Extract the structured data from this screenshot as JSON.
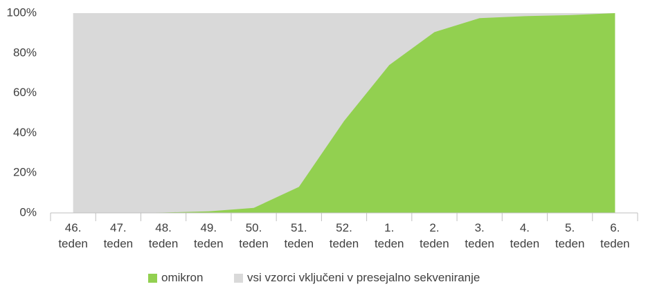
{
  "chart_data": {
    "type": "area",
    "categories": [
      "46. teden",
      "47. teden",
      "48. teden",
      "49. teden",
      "50. teden",
      "51. teden",
      "52. teden",
      "1. teden",
      "2. teden",
      "3. teden",
      "4. teden",
      "5. teden",
      "6. teden"
    ],
    "series": [
      {
        "name": "omikron",
        "color": "#92d050",
        "values": [
          0,
          0,
          0.2,
          0.8,
          2.5,
          13,
          46,
          74,
          90.5,
          97.5,
          98.5,
          99,
          100
        ]
      },
      {
        "name": "vsi vzorci vključeni v presejalno sekveniranje",
        "color": "#d9d9d9",
        "values": [
          100,
          100,
          100,
          100,
          100,
          100,
          100,
          100,
          100,
          100,
          100,
          100,
          100
        ]
      }
    ],
    "ylim": [
      0,
      100
    ],
    "yticks": [
      {
        "value": 0,
        "label": "0%"
      },
      {
        "value": 20,
        "label": "20%"
      },
      {
        "value": 40,
        "label": "40%"
      },
      {
        "value": 60,
        "label": "60%"
      },
      {
        "value": 80,
        "label": "80%"
      },
      {
        "value": 100,
        "label": "100%"
      }
    ],
    "grid": false,
    "legend": "bottom"
  }
}
